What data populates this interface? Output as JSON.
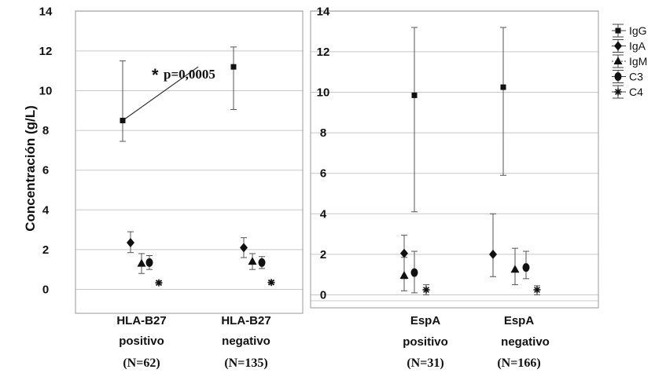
{
  "chart_data": [
    {
      "type": "scatter",
      "ylabel": "Concentración (g/L)",
      "ylim": [
        -0.6,
        14.5
      ],
      "yticks": [
        0,
        2,
        4,
        6,
        8,
        10,
        12,
        14
      ],
      "grid": true,
      "categories": [
        [
          "HLA-B27",
          "positivo",
          "(N=62)"
        ],
        [
          "HLA-B27",
          "negativo",
          "(N=135)"
        ]
      ],
      "annotation": {
        "star": "*",
        "text": "p=0,0005"
      },
      "series": [
        {
          "name": "IgG",
          "marker": "square",
          "mean": [
            8.5,
            11.2
          ],
          "low": [
            7.45,
            9.05
          ],
          "high": [
            11.5,
            12.2
          ]
        },
        {
          "name": "IgA",
          "marker": "diamond",
          "mean": [
            2.35,
            2.1
          ],
          "low": [
            1.85,
            1.6
          ],
          "high": [
            2.9,
            2.6
          ]
        },
        {
          "name": "IgM",
          "marker": "triangle",
          "mean": [
            1.3,
            1.4
          ],
          "low": [
            0.8,
            1.0
          ],
          "high": [
            1.8,
            1.8
          ]
        },
        {
          "name": "C3",
          "marker": "circle",
          "mean": [
            1.35,
            1.35
          ],
          "low": [
            1.0,
            1.05
          ],
          "high": [
            1.7,
            1.65
          ]
        },
        {
          "name": "C4",
          "marker": "asterisk",
          "mean": [
            0.33,
            0.35
          ],
          "low": [
            0.25,
            0.27
          ],
          "high": [
            0.42,
            0.43
          ]
        }
      ]
    },
    {
      "type": "scatter",
      "ylim": [
        -0.35,
        14.4
      ],
      "yticks": [
        0,
        2,
        4,
        6,
        8,
        10,
        12,
        14
      ],
      "grid": true,
      "categories": [
        [
          "EspA",
          "positivo",
          "(N=31)"
        ],
        [
          "EspA",
          "negativo",
          "(N=166)"
        ]
      ],
      "legend": {
        "placement": "outside-right",
        "entries": [
          "IgG",
          "IgA",
          "IgM",
          "C3",
          "C4"
        ]
      },
      "series": [
        {
          "name": "IgG",
          "marker": "square",
          "mean": [
            9.85,
            10.25
          ],
          "low": [
            4.1,
            5.9
          ],
          "high": [
            13.2,
            13.2
          ]
        },
        {
          "name": "IgA",
          "marker": "diamond",
          "mean": [
            2.05,
            2.0
          ],
          "low": [
            0.8,
            0.9
          ],
          "high": [
            2.95,
            4.0
          ]
        },
        {
          "name": "IgM",
          "marker": "triangle",
          "mean": [
            0.95,
            1.25
          ],
          "low": [
            0.2,
            0.5
          ],
          "high": [
            1.85,
            2.3
          ]
        },
        {
          "name": "C3",
          "marker": "circle",
          "mean": [
            1.1,
            1.35
          ],
          "low": [
            0.1,
            0.8
          ],
          "high": [
            2.15,
            2.15
          ]
        },
        {
          "name": "C4",
          "marker": "asterisk",
          "mean": [
            0.25,
            0.25
          ],
          "low": [
            0.0,
            0.0
          ],
          "high": [
            0.5,
            0.45
          ]
        }
      ]
    }
  ]
}
